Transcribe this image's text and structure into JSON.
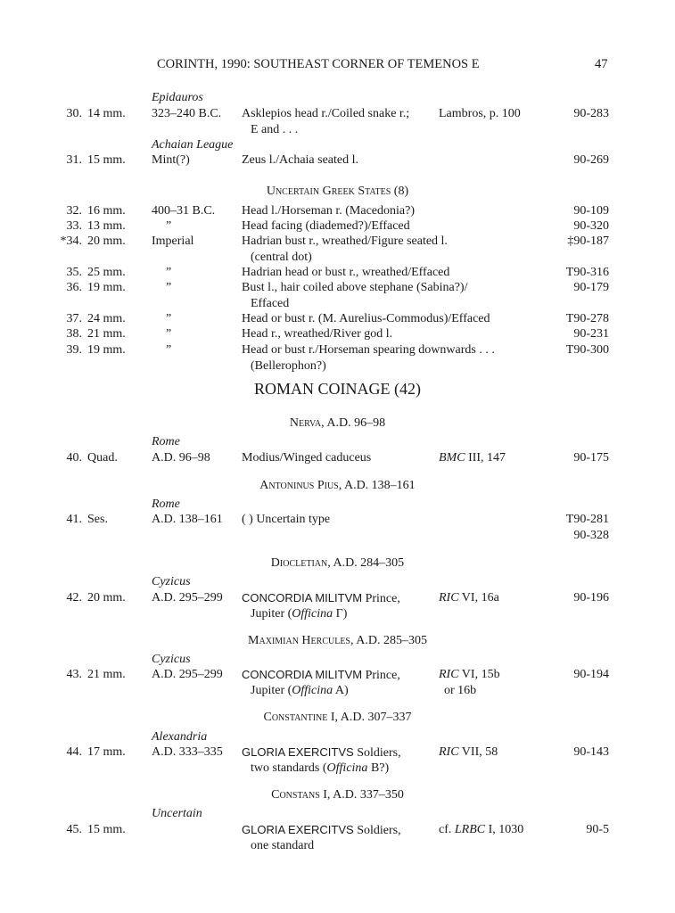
{
  "header": {
    "title": "CORINTH, 1990: SOUTHEAST CORNER OF TEMENOS E",
    "page": "47"
  },
  "blocks": [
    {
      "type": "mint",
      "text": "Epidauros"
    },
    {
      "type": "entry",
      "no": "30.",
      "size": "14 mm.",
      "date": "323–240 B.C.",
      "desc": [
        "Asklepios head r./Coiled snake r.;",
        "Ε and . . ."
      ],
      "ref": [
        "Lambros, p. 100"
      ],
      "inv": [
        "90-283"
      ]
    },
    {
      "type": "mint",
      "text": "Achaian League"
    },
    {
      "type": "entry",
      "no": "31.",
      "size": "15 mm.",
      "date": "Mint(?)",
      "desc": [
        "Zeus l./Achaia seated l."
      ],
      "ref": [],
      "inv": [
        "90-269"
      ]
    },
    {
      "type": "heading",
      "text": "Uncertain Greek States (8)"
    },
    {
      "type": "entry",
      "no": "32.",
      "size": "16 mm.",
      "date": "400–31 B.C.",
      "desc": [
        "Head l./Horseman r. (Macedonia?)"
      ],
      "ref": [],
      "inv": [
        "90-109"
      ]
    },
    {
      "type": "entry",
      "no": "33.",
      "size": "13 mm.",
      "date": "”",
      "desc": [
        "Head facing (diademed?)/Effaced"
      ],
      "ref": [],
      "inv": [
        "90-320"
      ]
    },
    {
      "type": "entry",
      "no": "*34.",
      "size": "20 mm.",
      "date": "Imperial",
      "desc": [
        "Hadrian bust r., wreathed/Figure seated l.",
        "(central dot)"
      ],
      "ref": [],
      "inv": [
        "‡90-187"
      ]
    },
    {
      "type": "entry",
      "no": "35.",
      "size": "25 mm.",
      "date": "”",
      "desc": [
        "Hadrian head or bust r., wreathed/Effaced"
      ],
      "ref": [],
      "inv": [
        "T90-316"
      ]
    },
    {
      "type": "entry",
      "no": "36.",
      "size": "19 mm.",
      "date": "”",
      "desc": [
        "Bust l., hair coiled above stephane (Sabina?)/",
        "Effaced"
      ],
      "ref": [],
      "inv": [
        "90-179"
      ]
    },
    {
      "type": "entry",
      "no": "37.",
      "size": "24 mm.",
      "date": "”",
      "desc": [
        "Head or bust r. (M. Aurelius-Commodus)/Effaced"
      ],
      "ref": [],
      "inv": [
        "T90-278"
      ]
    },
    {
      "type": "entry",
      "no": "38.",
      "size": "21 mm.",
      "date": "”",
      "desc": [
        "Head r., wreathed/River god l."
      ],
      "ref": [],
      "inv": [
        "90-231"
      ]
    },
    {
      "type": "entry",
      "no": "39.",
      "size": "19 mm.",
      "date": "”",
      "desc": [
        "Head or bust r./Horseman spearing downwards . . .",
        "(Bellerophon?)"
      ],
      "ref": [],
      "inv": [
        "T90-300"
      ]
    },
    {
      "type": "major",
      "text": "ROMAN COINAGE (42)"
    },
    {
      "type": "heading",
      "text": "Nerva, A.D. 96–98"
    },
    {
      "type": "mint",
      "text": "Rome"
    },
    {
      "type": "entry",
      "no": "40.",
      "size": "Quad.",
      "date": "A.D. 96–98",
      "desc": [
        "Modius/Winged caduceus"
      ],
      "ref": [
        [
          {
            "t": "BMC",
            "i": true
          },
          {
            "t": " III, 147"
          }
        ]
      ],
      "inv": [
        "90-175"
      ]
    },
    {
      "type": "heading",
      "text": "Antoninus Pius, A.D. 138–161"
    },
    {
      "type": "mint",
      "text": "Rome"
    },
    {
      "type": "entry",
      "no": "41.",
      "size": "Ses.",
      "date": "A.D. 138–161",
      "desc": [
        "(   ) Uncertain type"
      ],
      "ref": [],
      "inv": [
        "T90-281",
        "90-328"
      ]
    },
    {
      "type": "heading",
      "text": "Diocletian, A.D. 284–305"
    },
    {
      "type": "mint",
      "text": "Cyzicus"
    },
    {
      "type": "entry",
      "no": "42.",
      "size": "20 mm.",
      "date": "A.D. 295–299",
      "desc": [
        [
          {
            "t": "CONCORDIA MILITVM",
            "s": true
          },
          {
            "t": " Prince,"
          }
        ],
        [
          {
            "t": "Jupiter ("
          },
          {
            "t": "Officina",
            "i": true
          },
          {
            "t": " Γ)"
          }
        ]
      ],
      "ref": [
        [
          {
            "t": "RIC",
            "i": true
          },
          {
            "t": " VI, 16a"
          }
        ]
      ],
      "inv": [
        "90-196"
      ]
    },
    {
      "type": "heading",
      "text": "Maximian Hercules, A.D. 285–305"
    },
    {
      "type": "mint",
      "text": "Cyzicus"
    },
    {
      "type": "entry",
      "no": "43.",
      "size": "21 mm.",
      "date": "A.D. 295–299",
      "desc": [
        [
          {
            "t": "CONCORDIA MILITVM",
            "s": true
          },
          {
            "t": " Prince,"
          }
        ],
        [
          {
            "t": "Jupiter ("
          },
          {
            "t": "Officina",
            "i": true
          },
          {
            "t": " A)"
          }
        ]
      ],
      "ref": [
        [
          {
            "t": "RIC",
            "i": true
          },
          {
            "t": " VI, 15b"
          }
        ],
        "or 16b"
      ],
      "inv": [
        "90-194"
      ]
    },
    {
      "type": "heading",
      "text": "Constantine I, A.D. 307–337"
    },
    {
      "type": "mint",
      "text": "Alexandria"
    },
    {
      "type": "entry",
      "no": "44.",
      "size": "17 mm.",
      "date": "A.D. 333–335",
      "desc": [
        [
          {
            "t": "GLORIA EXERCITVS",
            "s": true
          },
          {
            "t": " Soldiers,"
          }
        ],
        [
          {
            "t": "two standards ("
          },
          {
            "t": "Officina",
            "i": true
          },
          {
            "t": " B?)"
          }
        ]
      ],
      "ref": [
        [
          {
            "t": "RIC",
            "i": true
          },
          {
            "t": " VII, 58"
          }
        ]
      ],
      "inv": [
        "90-143"
      ]
    },
    {
      "type": "heading",
      "text": "Constans I, A.D. 337–350"
    },
    {
      "type": "mint",
      "text": "Uncertain"
    },
    {
      "type": "entry",
      "no": "45.",
      "size": "15 mm.",
      "date": "",
      "desc": [
        [
          {
            "t": "GLORIA EXERCITVS",
            "s": true
          },
          {
            "t": " Soldiers,"
          }
        ],
        "one standard"
      ],
      "ref": [
        [
          {
            "t": "cf. "
          },
          {
            "t": "LRBC",
            "i": true
          },
          {
            "t": " I, 1030"
          }
        ]
      ],
      "inv": [
        "90-5"
      ]
    }
  ]
}
